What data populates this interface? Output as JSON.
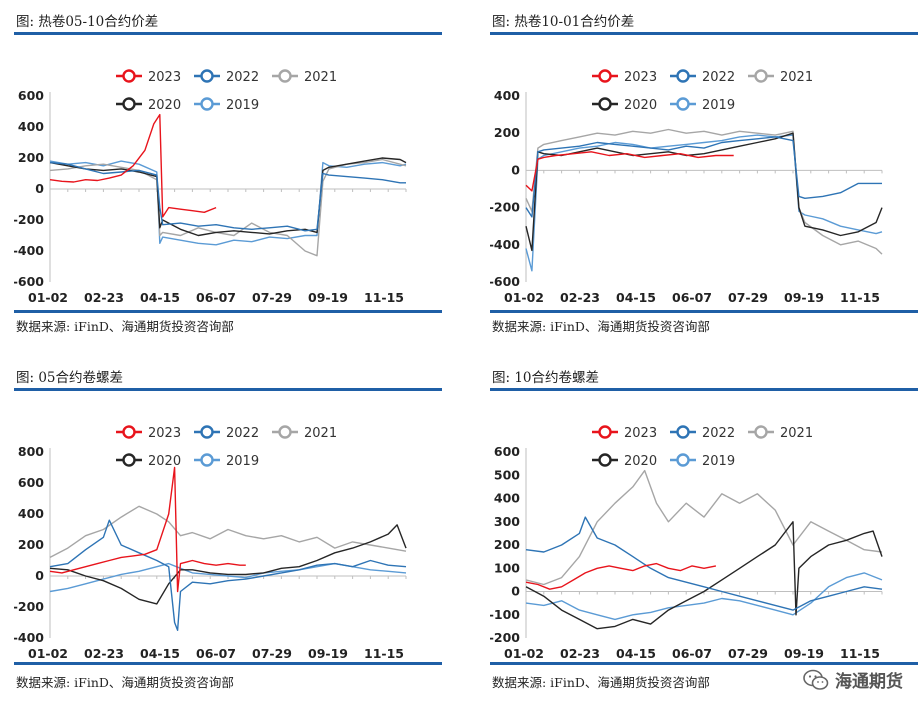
{
  "brand": {
    "text": "海通期货"
  },
  "panels": [
    {
      "title": "图:  热卷05-10合约价差",
      "source": "数据来源:  iFinD、海通期货投资咨询部"
    },
    {
      "title": "图:  热卷10-01合约价差",
      "source": "数据来源:  iFinD、海通期货投资咨询部"
    },
    {
      "title": "图:  05合约卷螺差",
      "source": "数据来源:  iFinD、海通期货投资咨询部"
    },
    {
      "title": "图:  10合约卷螺差",
      "source": "数据来源:  iFinD、海通期货投资咨询部"
    }
  ],
  "colors": {
    "2023": "#e8141c",
    "2022": "#2e74b5",
    "2021": "#a6a6a6",
    "2020": "#262626",
    "2019": "#5b9bd5",
    "rule": "#1f5fa6"
  },
  "chart_data": [
    {
      "type": "line",
      "categories": [
        "01-02",
        "02-23",
        "04-15",
        "06-07",
        "07-29",
        "09-19",
        "11-15"
      ],
      "ylim": [
        -600,
        600
      ],
      "yticks": [
        -600,
        -400,
        -200,
        0,
        200,
        400,
        600
      ],
      "legend": [
        "2023",
        "2022",
        "2021",
        "2020",
        "2019"
      ],
      "series": [
        {
          "name": "2023",
          "x": [
            0,
            4,
            8,
            12,
            16,
            20,
            24,
            28,
            32,
            35,
            37,
            38,
            40,
            44,
            48,
            52,
            56
          ],
          "y": [
            60,
            50,
            45,
            60,
            55,
            70,
            90,
            150,
            250,
            420,
            480,
            -180,
            -120,
            -130,
            -140,
            -150,
            -120
          ]
        },
        {
          "name": "2022",
          "x": [
            0,
            6,
            12,
            18,
            24,
            30,
            36,
            37,
            38,
            44,
            50,
            56,
            62,
            68,
            74,
            80,
            86,
            90,
            92,
            94,
            100,
            106,
            112,
            118,
            120
          ],
          "y": [
            170,
            160,
            130,
            100,
            110,
            120,
            90,
            -120,
            -230,
            -220,
            -240,
            -230,
            -250,
            -260,
            -250,
            -240,
            -270,
            -260,
            100,
            90,
            80,
            70,
            60,
            40,
            40
          ]
        },
        {
          "name": "2021",
          "x": [
            0,
            6,
            12,
            18,
            24,
            30,
            36,
            37,
            38,
            44,
            50,
            56,
            62,
            68,
            74,
            80,
            86,
            90,
            92,
            94,
            100,
            106,
            112,
            118,
            120
          ],
          "y": [
            120,
            130,
            150,
            160,
            140,
            120,
            60,
            -300,
            -280,
            -300,
            -250,
            -280,
            -300,
            -220,
            -280,
            -300,
            -400,
            -430,
            50,
            130,
            160,
            170,
            190,
            160,
            150
          ]
        },
        {
          "name": "2020",
          "x": [
            0,
            6,
            12,
            18,
            24,
            30,
            36,
            37,
            38,
            44,
            50,
            56,
            62,
            68,
            74,
            80,
            86,
            90,
            92,
            94,
            100,
            106,
            112,
            118,
            120
          ],
          "y": [
            170,
            150,
            130,
            120,
            130,
            110,
            80,
            -250,
            -200,
            -260,
            -300,
            -280,
            -270,
            -280,
            -290,
            -270,
            -260,
            -280,
            120,
            140,
            160,
            180,
            200,
            190,
            170
          ]
        },
        {
          "name": "2019",
          "x": [
            0,
            6,
            12,
            18,
            24,
            30,
            36,
            37,
            38,
            44,
            50,
            56,
            62,
            68,
            74,
            80,
            86,
            90,
            92,
            94,
            100,
            106,
            112,
            118,
            120
          ],
          "y": [
            180,
            160,
            170,
            150,
            180,
            160,
            110,
            -350,
            -310,
            -330,
            -350,
            -360,
            -330,
            -340,
            -310,
            -320,
            -300,
            -300,
            170,
            150,
            140,
            160,
            170,
            150,
            160
          ]
        }
      ]
    },
    {
      "type": "line",
      "categories": [
        "01-02",
        "02-23",
        "04-15",
        "06-07",
        "07-29",
        "09-19",
        "11-15"
      ],
      "ylim": [
        -600,
        400
      ],
      "yticks": [
        -600,
        -400,
        -200,
        0,
        200,
        400
      ],
      "legend": [
        "2023",
        "2022",
        "2021",
        "2020",
        "2019"
      ],
      "series": [
        {
          "name": "2023",
          "x": [
            0,
            2,
            4,
            6,
            10,
            16,
            22,
            28,
            34,
            40,
            46,
            52,
            58,
            64,
            70
          ],
          "y": [
            -80,
            -110,
            60,
            70,
            80,
            90,
            100,
            80,
            90,
            70,
            80,
            90,
            70,
            80,
            80
          ]
        },
        {
          "name": "2022",
          "x": [
            0,
            2,
            4,
            6,
            12,
            18,
            24,
            30,
            36,
            42,
            48,
            54,
            60,
            66,
            72,
            78,
            84,
            90,
            92,
            94,
            100,
            106,
            112,
            118,
            120
          ],
          "y": [
            -200,
            -250,
            100,
            110,
            120,
            130,
            150,
            140,
            130,
            120,
            110,
            130,
            120,
            150,
            160,
            170,
            180,
            160,
            -140,
            -150,
            -140,
            -120,
            -70,
            -70,
            -70
          ]
        },
        {
          "name": "2021",
          "x": [
            0,
            2,
            4,
            6,
            12,
            18,
            24,
            30,
            36,
            42,
            48,
            54,
            60,
            66,
            72,
            78,
            84,
            90,
            92,
            94,
            100,
            106,
            112,
            118,
            120
          ],
          "y": [
            -150,
            -220,
            120,
            140,
            160,
            180,
            200,
            190,
            210,
            200,
            220,
            200,
            210,
            190,
            210,
            200,
            190,
            210,
            -200,
            -280,
            -350,
            -400,
            -380,
            -420,
            -450
          ]
        },
        {
          "name": "2020",
          "x": [
            0,
            2,
            4,
            6,
            12,
            18,
            24,
            30,
            36,
            42,
            48,
            54,
            60,
            66,
            72,
            78,
            84,
            90,
            92,
            94,
            100,
            106,
            112,
            118,
            120
          ],
          "y": [
            -300,
            -430,
            100,
            90,
            80,
            100,
            120,
            100,
            80,
            90,
            100,
            80,
            90,
            110,
            130,
            150,
            170,
            200,
            -200,
            -300,
            -320,
            -350,
            -330,
            -280,
            -200
          ]
        },
        {
          "name": "2019",
          "x": [
            0,
            2,
            4,
            6,
            12,
            18,
            24,
            30,
            36,
            42,
            48,
            54,
            60,
            66,
            72,
            78,
            84,
            90,
            92,
            94,
            100,
            106,
            112,
            118,
            120
          ],
          "y": [
            -420,
            -540,
            60,
            80,
            100,
            120,
            130,
            150,
            140,
            120,
            130,
            140,
            150,
            160,
            180,
            190,
            180,
            190,
            -220,
            -240,
            -260,
            -300,
            -320,
            -340,
            -330
          ]
        }
      ]
    },
    {
      "type": "line",
      "categories": [
        "01-02",
        "02-23",
        "04-15",
        "06-07",
        "07-29",
        "09-19",
        "11-15"
      ],
      "ylim": [
        -400,
        800
      ],
      "yticks": [
        -400,
        -200,
        0,
        200,
        400,
        600,
        800
      ],
      "legend": [
        "2023",
        "2022",
        "2021",
        "2020",
        "2019"
      ],
      "series": [
        {
          "name": "2023",
          "x": [
            0,
            4,
            8,
            12,
            16,
            20,
            24,
            28,
            32,
            36,
            40,
            42,
            43,
            44,
            46,
            48,
            52,
            56,
            60,
            64,
            66
          ],
          "y": [
            30,
            20,
            40,
            60,
            80,
            100,
            120,
            130,
            140,
            170,
            400,
            700,
            -100,
            80,
            90,
            100,
            80,
            70,
            80,
            70,
            70
          ]
        },
        {
          "name": "2022",
          "x": [
            0,
            6,
            12,
            18,
            20,
            24,
            30,
            36,
            40,
            42,
            43,
            44,
            48,
            54,
            60,
            66,
            72,
            78,
            84,
            90,
            96,
            102,
            108,
            114,
            120
          ],
          "y": [
            60,
            80,
            170,
            250,
            360,
            200,
            150,
            100,
            60,
            -300,
            -350,
            -100,
            -40,
            -50,
            -30,
            -20,
            0,
            20,
            40,
            70,
            80,
            60,
            100,
            70,
            60
          ]
        },
        {
          "name": "2021",
          "x": [
            0,
            6,
            12,
            18,
            24,
            30,
            36,
            40,
            44,
            48,
            54,
            60,
            66,
            72,
            78,
            84,
            90,
            96,
            102,
            108,
            114,
            120
          ],
          "y": [
            120,
            180,
            260,
            300,
            380,
            450,
            400,
            350,
            260,
            280,
            240,
            300,
            260,
            240,
            260,
            220,
            250,
            180,
            220,
            200,
            180,
            160
          ]
        },
        {
          "name": "2020",
          "x": [
            0,
            6,
            12,
            18,
            24,
            30,
            36,
            40,
            44,
            48,
            54,
            60,
            66,
            72,
            78,
            84,
            90,
            96,
            102,
            108,
            114,
            117,
            120
          ],
          "y": [
            50,
            40,
            0,
            -30,
            -80,
            -150,
            -180,
            -50,
            40,
            40,
            20,
            10,
            10,
            20,
            50,
            60,
            100,
            150,
            180,
            220,
            270,
            330,
            180
          ]
        },
        {
          "name": "2019",
          "x": [
            0,
            6,
            12,
            18,
            24,
            30,
            36,
            40,
            44,
            48,
            54,
            60,
            66,
            72,
            78,
            84,
            90,
            96,
            102,
            108,
            114,
            120
          ],
          "y": [
            -100,
            -80,
            -50,
            -20,
            10,
            30,
            60,
            80,
            50,
            20,
            10,
            0,
            -10,
            20,
            30,
            40,
            60,
            80,
            60,
            40,
            30,
            20
          ]
        }
      ]
    },
    {
      "type": "line",
      "categories": [
        "01-02",
        "02-23",
        "04-15",
        "06-07",
        "07-29",
        "09-19",
        "11-15"
      ],
      "ylim": [
        -200,
        600
      ],
      "yticks": [
        -200,
        -100,
        0,
        100,
        200,
        300,
        400,
        500,
        600
      ],
      "legend": [
        "2023",
        "2022",
        "2021",
        "2020",
        "2019"
      ],
      "series": [
        {
          "name": "2023",
          "x": [
            0,
            4,
            8,
            12,
            16,
            20,
            24,
            28,
            32,
            36,
            40,
            44,
            48,
            52,
            56,
            60,
            64
          ],
          "y": [
            40,
            30,
            10,
            20,
            50,
            80,
            100,
            110,
            100,
            90,
            110,
            120,
            100,
            90,
            110,
            100,
            110
          ]
        },
        {
          "name": "2022",
          "x": [
            0,
            6,
            12,
            18,
            20,
            24,
            30,
            36,
            42,
            48,
            54,
            60,
            66,
            72,
            78,
            84,
            90,
            96,
            102,
            108,
            114,
            120
          ],
          "y": [
            180,
            170,
            200,
            250,
            320,
            230,
            200,
            150,
            100,
            60,
            40,
            20,
            0,
            -20,
            -40,
            -60,
            -80,
            -40,
            -20,
            0,
            20,
            10
          ]
        },
        {
          "name": "2021",
          "x": [
            0,
            6,
            12,
            18,
            24,
            30,
            36,
            40,
            44,
            48,
            54,
            60,
            66,
            72,
            78,
            84,
            90,
            96,
            102,
            108,
            114,
            120
          ],
          "y": [
            50,
            30,
            60,
            150,
            300,
            380,
            450,
            520,
            380,
            300,
            380,
            320,
            420,
            380,
            420,
            350,
            200,
            300,
            260,
            220,
            180,
            170
          ]
        },
        {
          "name": "2020",
          "x": [
            0,
            6,
            12,
            18,
            24,
            30,
            36,
            42,
            48,
            54,
            60,
            66,
            72,
            78,
            84,
            90,
            91,
            92,
            96,
            102,
            108,
            114,
            117,
            120
          ],
          "y": [
            20,
            -20,
            -80,
            -120,
            -160,
            -150,
            -120,
            -140,
            -80,
            -40,
            0,
            50,
            100,
            150,
            200,
            300,
            -100,
            100,
            150,
            200,
            220,
            250,
            260,
            150
          ]
        },
        {
          "name": "2019",
          "x": [
            0,
            6,
            12,
            18,
            24,
            30,
            36,
            42,
            48,
            54,
            60,
            66,
            72,
            78,
            84,
            90,
            96,
            102,
            108,
            114,
            120
          ],
          "y": [
            -50,
            -60,
            -40,
            -80,
            -100,
            -120,
            -100,
            -90,
            -70,
            -60,
            -50,
            -30,
            -40,
            -60,
            -80,
            -100,
            -50,
            20,
            60,
            80,
            50
          ]
        }
      ]
    }
  ]
}
